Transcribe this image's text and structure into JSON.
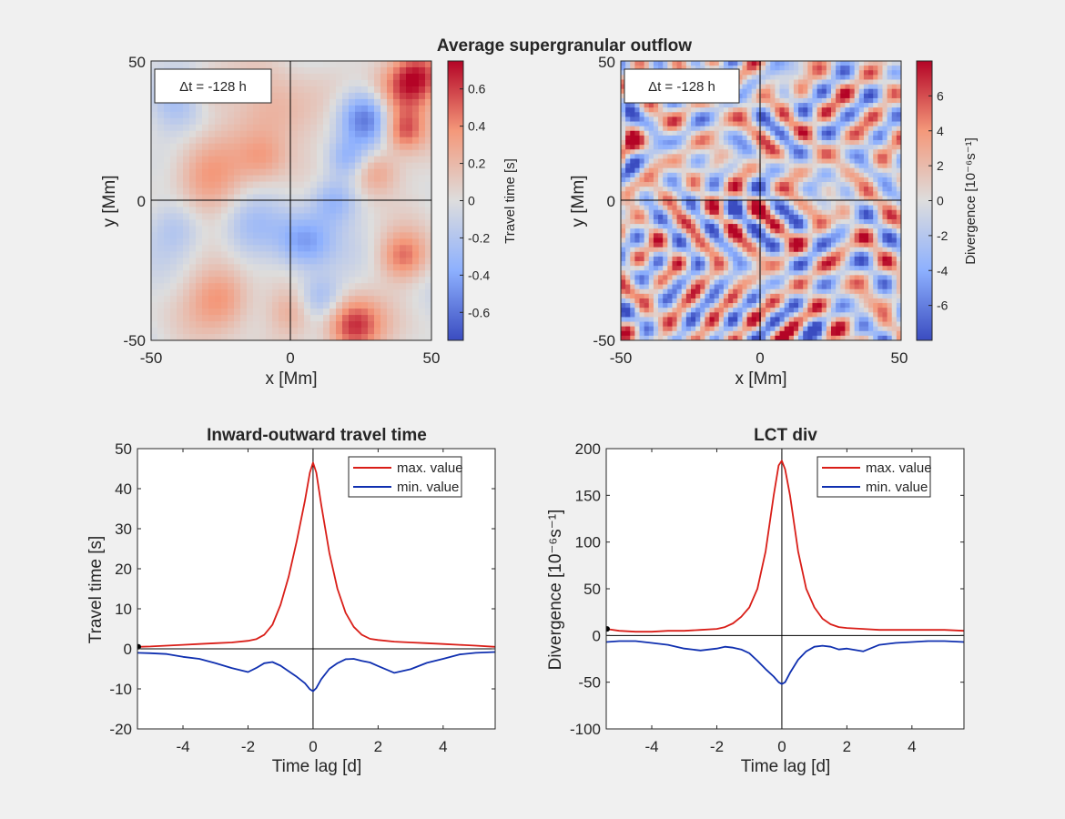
{
  "figure": {
    "suptitle": "Average supergranular outflow"
  },
  "colors": {
    "max_line": "#d91e18",
    "min_line": "#1030b0",
    "cmap_low": "#3a4cc0",
    "cmap_mid": "#dddddd",
    "cmap_high": "#b40426"
  },
  "chart_data": [
    {
      "type": "heatmap",
      "id": "map-travel-time",
      "title": "",
      "xlabel": "x [Mm]",
      "ylabel": "y [Mm]",
      "xlim": [
        -50,
        50
      ],
      "ylim": [
        -50,
        50
      ],
      "xticks": [
        "-50",
        "0",
        "50"
      ],
      "yticks": [
        "-50",
        "0",
        "50"
      ],
      "annotation": "Δt = -128 h",
      "colorbar": {
        "label": "Travel time [s]",
        "range": [
          -0.75,
          0.75
        ],
        "ticks": [
          "-0.6",
          "-0.4",
          "-0.2",
          "0",
          "0.2",
          "0.4",
          "0.6"
        ],
        "tick_values": [
          -0.6,
          -0.4,
          -0.2,
          0,
          0.2,
          0.4,
          0.6
        ]
      },
      "blobs": [
        [
          38,
          38,
          8,
          0.75
        ],
        [
          22,
          -45,
          7,
          0.9
        ],
        [
          27,
          30,
          -7,
          -0.95
        ],
        [
          -30,
          8,
          9,
          0.5
        ],
        [
          -25,
          -35,
          8,
          0.55
        ],
        [
          40,
          -20,
          6,
          0.6
        ],
        [
          -42,
          35,
          8,
          -0.35
        ],
        [
          15,
          0,
          6,
          -0.5
        ],
        [
          5,
          -15,
          7,
          -0.6
        ],
        [
          -5,
          30,
          10,
          0.4
        ],
        [
          -15,
          -10,
          8,
          -0.3
        ],
        [
          30,
          10,
          6,
          0.5
        ],
        [
          45,
          45,
          6,
          0.7
        ],
        [
          -40,
          -10,
          7,
          -0.3
        ],
        [
          10,
          -35,
          6,
          -0.45
        ],
        [
          -10,
          15,
          6,
          0.3
        ],
        [
          40,
          25,
          5,
          0.6
        ],
        [
          0,
          -40,
          6,
          0.35
        ],
        [
          20,
          15,
          5,
          -0.4
        ],
        [
          -30,
          40,
          6,
          0.3
        ]
      ]
    },
    {
      "type": "heatmap",
      "id": "map-divergence",
      "title": "",
      "xlabel": "x [Mm]",
      "ylabel": "y [Mm]",
      "xlim": [
        -50,
        50
      ],
      "ylim": [
        -50,
        50
      ],
      "xticks": [
        "-50",
        "0",
        "50"
      ],
      "yticks": [
        "-50",
        "0",
        "50"
      ],
      "annotation": "Δt = -128 h",
      "colorbar": {
        "label": "Divergence [10⁻⁶s⁻¹]",
        "range": [
          -8,
          8
        ],
        "ticks": [
          "-6",
          "-4",
          "-2",
          "0",
          "2",
          "4",
          "6"
        ],
        "tick_values": [
          -6,
          -4,
          -2,
          0,
          2,
          4,
          6
        ]
      }
    },
    {
      "type": "line",
      "id": "line-travel-time",
      "title": "Inward-outward travel time",
      "xlabel": "Time lag [d]",
      "ylabel": "Travel time [s]",
      "xlim": [
        -5.4,
        5.6
      ],
      "ylim": [
        -20,
        50
      ],
      "xticks": [
        -4,
        -2,
        0,
        2,
        4
      ],
      "yticks": [
        -20,
        -10,
        0,
        10,
        20,
        30,
        40,
        50
      ],
      "legend_position": "top-right",
      "x": [
        -5.4,
        -5.0,
        -4.5,
        -4.0,
        -3.5,
        -3.0,
        -2.5,
        -2.0,
        -1.75,
        -1.5,
        -1.25,
        -1.0,
        -0.75,
        -0.5,
        -0.25,
        -0.1,
        0.0,
        0.1,
        0.25,
        0.5,
        0.75,
        1.0,
        1.25,
        1.5,
        1.75,
        2.0,
        2.5,
        3.0,
        3.5,
        4.0,
        4.5,
        5.0,
        5.6
      ],
      "series": [
        {
          "name": "max. value",
          "values": [
            0.5,
            0.6,
            0.8,
            1.0,
            1.2,
            1.4,
            1.6,
            2.0,
            2.4,
            3.5,
            6.0,
            11.0,
            18.0,
            27.0,
            37.0,
            44.0,
            46.5,
            44.0,
            36.0,
            24.0,
            15.0,
            9.0,
            5.5,
            3.5,
            2.5,
            2.2,
            1.8,
            1.6,
            1.4,
            1.2,
            1.0,
            0.8,
            0.5
          ]
        },
        {
          "name": "min. value",
          "values": [
            -1.0,
            -1.1,
            -1.3,
            -2.0,
            -2.5,
            -3.6,
            -4.8,
            -5.8,
            -4.8,
            -3.6,
            -3.3,
            -4.2,
            -5.6,
            -7.0,
            -8.6,
            -10.1,
            -10.6,
            -9.8,
            -7.6,
            -5.0,
            -3.6,
            -2.6,
            -2.5,
            -3.0,
            -3.4,
            -4.3,
            -6.0,
            -5.1,
            -3.5,
            -2.5,
            -1.4,
            -1.0,
            -0.8
          ]
        }
      ]
    },
    {
      "type": "line",
      "id": "line-divergence",
      "title": "LCT div",
      "xlabel": "Time lag [d]",
      "ylabel": "Divergence [10⁻⁶s⁻¹]",
      "xlim": [
        -5.4,
        5.6
      ],
      "ylim": [
        -100,
        200
      ],
      "xticks": [
        -4,
        -2,
        0,
        2,
        4
      ],
      "yticks": [
        -100,
        -50,
        0,
        50,
        100,
        150,
        200
      ],
      "legend_position": "top-right",
      "x": [
        -5.4,
        -5.0,
        -4.5,
        -4.0,
        -3.5,
        -3.0,
        -2.5,
        -2.0,
        -1.75,
        -1.5,
        -1.25,
        -1.0,
        -0.75,
        -0.5,
        -0.25,
        -0.1,
        0.0,
        0.1,
        0.25,
        0.5,
        0.75,
        1.0,
        1.25,
        1.5,
        1.75,
        2.0,
        2.5,
        3.0,
        3.5,
        4.0,
        4.5,
        5.0,
        5.6
      ],
      "series": [
        {
          "name": "max. value",
          "values": [
            7,
            5,
            4,
            4,
            5,
            5,
            6,
            7,
            9,
            13,
            20,
            30,
            50,
            90,
            150,
            182,
            187,
            178,
            150,
            90,
            50,
            30,
            18,
            12,
            9,
            8,
            7,
            6,
            6,
            6,
            6,
            6,
            5
          ]
        },
        {
          "name": "min. value",
          "values": [
            -7,
            -6,
            -6,
            -8,
            -10,
            -14,
            -16,
            -14,
            -12,
            -13,
            -15,
            -19,
            -27,
            -36,
            -44,
            -50,
            -52,
            -50,
            -40,
            -26,
            -17,
            -12,
            -11,
            -12,
            -15,
            -14,
            -17,
            -10,
            -8,
            -7,
            -6,
            -6,
            -7
          ]
        }
      ]
    }
  ]
}
